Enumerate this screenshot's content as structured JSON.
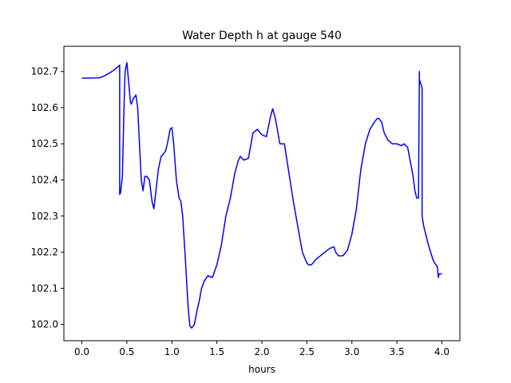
{
  "chart_data": {
    "type": "line",
    "title": "Water Depth h at gauge 540",
    "xlabel": "hours",
    "ylabel": "",
    "xlim": [
      -0.2,
      4.2
    ],
    "ylim": [
      101.955,
      102.77
    ],
    "grid": false,
    "legend": "none",
    "x_ticks": [
      0.0,
      0.5,
      1.0,
      1.5,
      2.0,
      2.5,
      3.0,
      3.5,
      4.0
    ],
    "x_tick_labels": [
      "0.0",
      "0.5",
      "1.0",
      "1.5",
      "2.0",
      "2.5",
      "3.0",
      "3.5",
      "4.0"
    ],
    "y_ticks": [
      102.0,
      102.1,
      102.2,
      102.3,
      102.4,
      102.5,
      102.6,
      102.7
    ],
    "y_tick_labels": [
      "102.0",
      "102.1",
      "102.2",
      "102.3",
      "102.4",
      "102.5",
      "102.6",
      "102.7"
    ],
    "series": [
      {
        "color": "#0000ff",
        "x": [
          0.0,
          0.1,
          0.2,
          0.25,
          0.3,
          0.35,
          0.4,
          0.42,
          0.42,
          0.43,
          0.45,
          0.47,
          0.48,
          0.5,
          0.52,
          0.54,
          0.55,
          0.57,
          0.6,
          0.62,
          0.64,
          0.66,
          0.68,
          0.7,
          0.72,
          0.75,
          0.78,
          0.8,
          0.85,
          0.88,
          0.9,
          0.93,
          0.95,
          0.98,
          1.0,
          1.02,
          1.05,
          1.08,
          1.1,
          1.12,
          1.15,
          1.18,
          1.2,
          1.22,
          1.25,
          1.28,
          1.3,
          1.33,
          1.36,
          1.4,
          1.45,
          1.5,
          1.55,
          1.6,
          1.65,
          1.7,
          1.74,
          1.76,
          1.8,
          1.85,
          1.88,
          1.9,
          1.95,
          2.0,
          2.05,
          2.1,
          2.12,
          2.15,
          2.2,
          2.25,
          2.3,
          2.35,
          2.4,
          2.45,
          2.5,
          2.52,
          2.55,
          2.6,
          2.65,
          2.7,
          2.75,
          2.8,
          2.82,
          2.85,
          2.9,
          2.95,
          3.0,
          3.05,
          3.1,
          3.15,
          3.2,
          3.25,
          3.28,
          3.3,
          3.33,
          3.36,
          3.4,
          3.45,
          3.5,
          3.55,
          3.58,
          3.6,
          3.62,
          3.65,
          3.68,
          3.7,
          3.72,
          3.74,
          3.75,
          3.75,
          3.76,
          3.78,
          3.78,
          3.8,
          3.85,
          3.9,
          3.92,
          3.95,
          3.96,
          3.97,
          4.0
        ],
        "y": [
          102.682,
          102.682,
          102.683,
          102.688,
          102.695,
          102.703,
          102.713,
          102.718,
          102.36,
          102.365,
          102.41,
          102.62,
          102.7,
          102.725,
          102.67,
          102.615,
          102.61,
          102.625,
          102.635,
          102.6,
          102.5,
          102.4,
          102.37,
          102.41,
          102.41,
          102.4,
          102.34,
          102.32,
          102.43,
          102.465,
          102.47,
          102.48,
          102.5,
          102.54,
          102.545,
          102.5,
          102.4,
          102.35,
          102.34,
          102.3,
          102.18,
          102.05,
          101.995,
          101.99,
          102.0,
          102.04,
          102.06,
          102.1,
          102.12,
          102.135,
          102.13,
          102.165,
          102.22,
          102.3,
          102.35,
          102.42,
          102.455,
          102.465,
          102.455,
          102.46,
          102.5,
          102.53,
          102.54,
          102.525,
          102.52,
          102.58,
          102.597,
          102.57,
          102.5,
          102.5,
          102.42,
          102.34,
          102.27,
          102.2,
          102.17,
          102.165,
          102.165,
          102.18,
          102.19,
          102.2,
          102.21,
          102.215,
          102.2,
          102.19,
          102.19,
          102.205,
          102.25,
          102.32,
          102.43,
          102.5,
          102.54,
          102.56,
          102.57,
          102.57,
          102.56,
          102.53,
          102.51,
          102.5,
          102.5,
          102.495,
          102.5,
          102.495,
          102.49,
          102.45,
          102.41,
          102.37,
          102.35,
          102.35,
          102.7,
          102.68,
          102.67,
          102.655,
          102.3,
          102.27,
          102.22,
          102.18,
          102.17,
          102.16,
          102.13,
          102.14,
          102.14
        ]
      }
    ]
  }
}
